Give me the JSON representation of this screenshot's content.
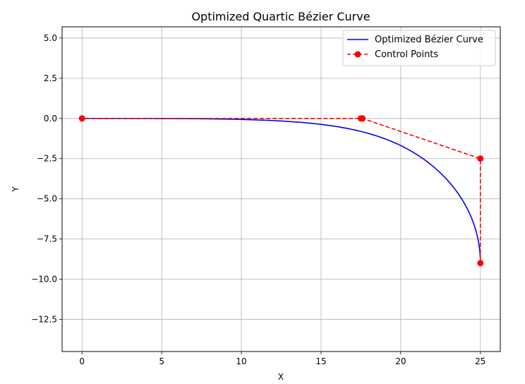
{
  "chart_data": {
    "type": "line",
    "title": "Optimized Quartic Bézier Curve",
    "xlabel": "X",
    "ylabel": "Y",
    "xlim": [
      -1.25,
      26.25
    ],
    "ylim": [
      -14.5,
      5.7
    ],
    "xticks": [
      0,
      5,
      10,
      15,
      20,
      25
    ],
    "xtick_labels": [
      "0",
      "5",
      "10",
      "15",
      "20",
      "25"
    ],
    "yticks": [
      5.0,
      2.5,
      0.0,
      -2.5,
      -5.0,
      -7.5,
      -10.0,
      -12.5
    ],
    "ytick_labels": [
      "5.0",
      "2.5",
      "0.0",
      "−2.5",
      "−5.0",
      "−7.5",
      "−10.0",
      "−12.5"
    ],
    "grid": true,
    "legend_position": "top-right",
    "series": [
      {
        "name": "Optimized Bézier Curve",
        "kind": "curve",
        "color": "#0000ff",
        "style": "solid",
        "bezier_control_points": [
          [
            0,
            0
          ],
          [
            17.5,
            0
          ],
          [
            17.6,
            0
          ],
          [
            25,
            -2.5
          ],
          [
            25,
            -9
          ]
        ]
      },
      {
        "name": "Control Points",
        "kind": "polyline-markers",
        "color": "#ff0000",
        "style": "dashed",
        "x": [
          0,
          17.5,
          17.6,
          25,
          25
        ],
        "y": [
          0,
          0,
          0,
          -2.5,
          -9
        ]
      }
    ]
  }
}
